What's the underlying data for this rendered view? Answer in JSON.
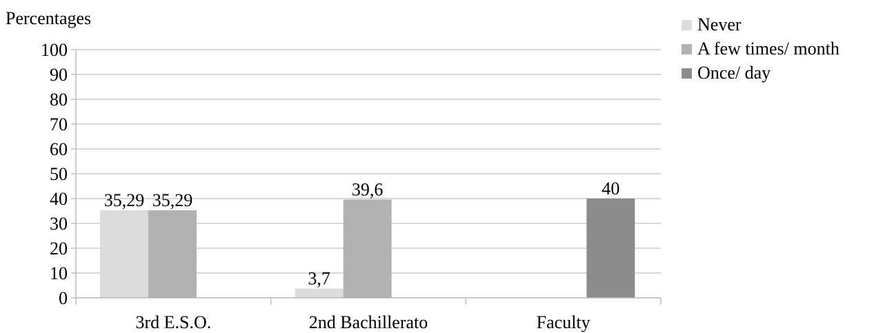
{
  "chart_data": {
    "type": "bar",
    "ylabel": "Percentages",
    "categories": [
      "3rd E.S.O.",
      "2nd Bachillerato",
      "Faculty"
    ],
    "ylim": [
      0,
      100
    ],
    "yticks": [
      "0",
      "10",
      "20",
      "30",
      "40",
      "50",
      "60",
      "70",
      "80",
      "90",
      "100"
    ],
    "grid": true,
    "legend_position": "top-right",
    "series": [
      {
        "name": "Never",
        "color": "#dcdcdc",
        "values": [
          35.29,
          3.7,
          0
        ],
        "labels": [
          "35,29",
          "3,7",
          ""
        ]
      },
      {
        "name": "A few times/ month",
        "color": "#b2b2b2",
        "values": [
          35.29,
          39.6,
          0
        ],
        "labels": [
          "35,29",
          "39,6",
          ""
        ]
      },
      {
        "name": "Once/ day",
        "color": "#8c8c8c",
        "values": [
          0,
          0,
          40
        ],
        "labels": [
          "",
          "",
          "40"
        ]
      }
    ]
  }
}
